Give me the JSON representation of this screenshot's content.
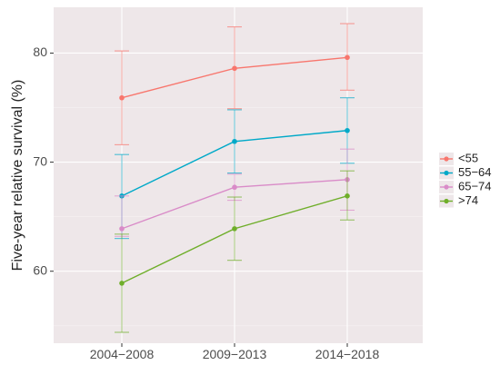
{
  "chart_data": {
    "type": "line",
    "title": "",
    "xlabel": "",
    "ylabel": "Five-year relative survival (%)",
    "categories": [
      "2004−2008",
      "2009−2013",
      "2014−2018"
    ],
    "yticks": [
      60,
      70,
      80
    ],
    "ylim": [
      53.4,
      84.2
    ],
    "grid": true,
    "legend_position": "right",
    "error_bars": true,
    "series": [
      {
        "name": "<55",
        "color": "#F8766D",
        "values": [
          75.9,
          78.6,
          79.6
        ],
        "lower": [
          71.6,
          74.9,
          76.6
        ],
        "upper": [
          80.2,
          82.4,
          82.7
        ]
      },
      {
        "name": "55−64",
        "color": "#00A9C8",
        "values": [
          66.9,
          71.9,
          72.9
        ],
        "lower": [
          63.0,
          69.0,
          69.9
        ],
        "upper": [
          70.7,
          74.8,
          75.9
        ]
      },
      {
        "name": "65−74",
        "color": "#D98BC8",
        "values": [
          63.9,
          67.7,
          68.4
        ],
        "lower": [
          63.2,
          66.5,
          65.6
        ],
        "upper": [
          66.9,
          68.9,
          71.2
        ]
      },
      {
        "name": ">74",
        "color": "#6FAE2A",
        "values": [
          58.9,
          63.9,
          66.9
        ],
        "lower": [
          54.4,
          61.0,
          64.7
        ],
        "upper": [
          63.4,
          66.8,
          69.2
        ]
      }
    ]
  }
}
